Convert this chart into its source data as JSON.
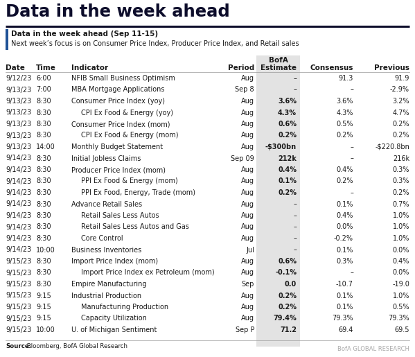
{
  "title": "Data in the week ahead",
  "subtitle_bold": "Data in the week ahead (Sep 11-15)",
  "subtitle_normal": "Next week’s focus is on Consumer Price Index, Producer Price Index, and Retail sales",
  "rows": [
    [
      "9/12/23",
      "6:00",
      "NFIB Small Business Optimism",
      false,
      "Aug",
      "–",
      "91.3",
      "91.9"
    ],
    [
      "9/13/23",
      "7:00",
      "MBA Mortgage Applications",
      false,
      "Sep 8",
      "–",
      "–",
      "-2.9%"
    ],
    [
      "9/13/23",
      "8:30",
      "Consumer Price Index (yoy)",
      false,
      "Aug",
      "3.6%",
      "3.6%",
      "3.2%"
    ],
    [
      "9/13/23",
      "8:30",
      "CPI Ex Food & Energy (yoy)",
      true,
      "Aug",
      "4.3%",
      "4.3%",
      "4.7%"
    ],
    [
      "9/13/23",
      "8:30",
      "Consumer Price Index (mom)",
      false,
      "Aug",
      "0.6%",
      "0.5%",
      "0.2%"
    ],
    [
      "9/13/23",
      "8:30",
      "CPI Ex Food & Energy (mom)",
      true,
      "Aug",
      "0.2%",
      "0.2%",
      "0.2%"
    ],
    [
      "9/13/23",
      "14:00",
      "Monthly Budget Statement",
      false,
      "Aug",
      "-$300bn",
      "–",
      "-$220.8bn"
    ],
    [
      "9/14/23",
      "8:30",
      "Initial Jobless Claims",
      false,
      "Sep 09",
      "212k",
      "–",
      "216k"
    ],
    [
      "9/14/23",
      "8:30",
      "Producer Price Index (mom)",
      false,
      "Aug",
      "0.4%",
      "0.4%",
      "0.3%"
    ],
    [
      "9/14/23",
      "8:30",
      "PPI Ex Food & Energy (mom)",
      true,
      "Aug",
      "0.1%",
      "0.2%",
      "0.3%"
    ],
    [
      "9/14/23",
      "8:30",
      "PPI Ex Food, Energy, Trade (mom)",
      true,
      "Aug",
      "0.2%",
      "–",
      "0.2%"
    ],
    [
      "9/14/23",
      "8:30",
      "Advance Retail Sales",
      false,
      "Aug",
      "–",
      "0.1%",
      "0.7%"
    ],
    [
      "9/14/23",
      "8:30",
      "Retail Sales Less Autos",
      true,
      "Aug",
      "–",
      "0.4%",
      "1.0%"
    ],
    [
      "9/14/23",
      "8:30",
      "Retail Sales Less Autos and Gas",
      true,
      "Aug",
      "–",
      "0.0%",
      "1.0%"
    ],
    [
      "9/14/23",
      "8:30",
      "Core Control",
      true,
      "Aug",
      "–",
      "-0.2%",
      "1.0%"
    ],
    [
      "9/14/23",
      "10:00",
      "Business Inventories",
      false,
      "Jul",
      "–",
      "0.1%",
      "0.0%"
    ],
    [
      "9/15/23",
      "8:30",
      "Import Price Index (mom)",
      false,
      "Aug",
      "0.6%",
      "0.3%",
      "0.4%"
    ],
    [
      "9/15/23",
      "8:30",
      "Import Price Index ex Petroleum (mom)",
      true,
      "Aug",
      "-0.1%",
      "–",
      "0.0%"
    ],
    [
      "9/15/23",
      "8:30",
      "Empire Manufacturing",
      false,
      "Sep",
      "0.0",
      "-10.7",
      "-19.0"
    ],
    [
      "9/15/23",
      "9:15",
      "Industrial Production",
      false,
      "Aug",
      "0.2%",
      "0.1%",
      "1.0%"
    ],
    [
      "9/15/23",
      "9:15",
      "Manufacturing Production",
      true,
      "Aug",
      "0.2%",
      "0.1%",
      "0.5%"
    ],
    [
      "9/15/23",
      "9:15",
      "Capacity Utilization",
      true,
      "Aug",
      "79.4%",
      "79.3%",
      "79.3%"
    ],
    [
      "9/15/23",
      "10:00",
      "U. of Michigan Sentiment",
      false,
      "Sep P",
      "71.2",
      "69.4",
      "69.5"
    ]
  ],
  "source_bold": "Source:",
  "source_normal": " Bloomberg, BofA Global Research",
  "watermark": "BofA GLOBAL RESEARCH",
  "bg_color": "#ffffff",
  "title_color": "#0d0d2b",
  "dark_line_color": "#0d0d2b",
  "blue_bar_color": "#1f5297",
  "estimate_bg": "#e3e3e3",
  "text_color": "#1a1a1a",
  "sep_color": "#999999",
  "watermark_color": "#aaaaaa"
}
